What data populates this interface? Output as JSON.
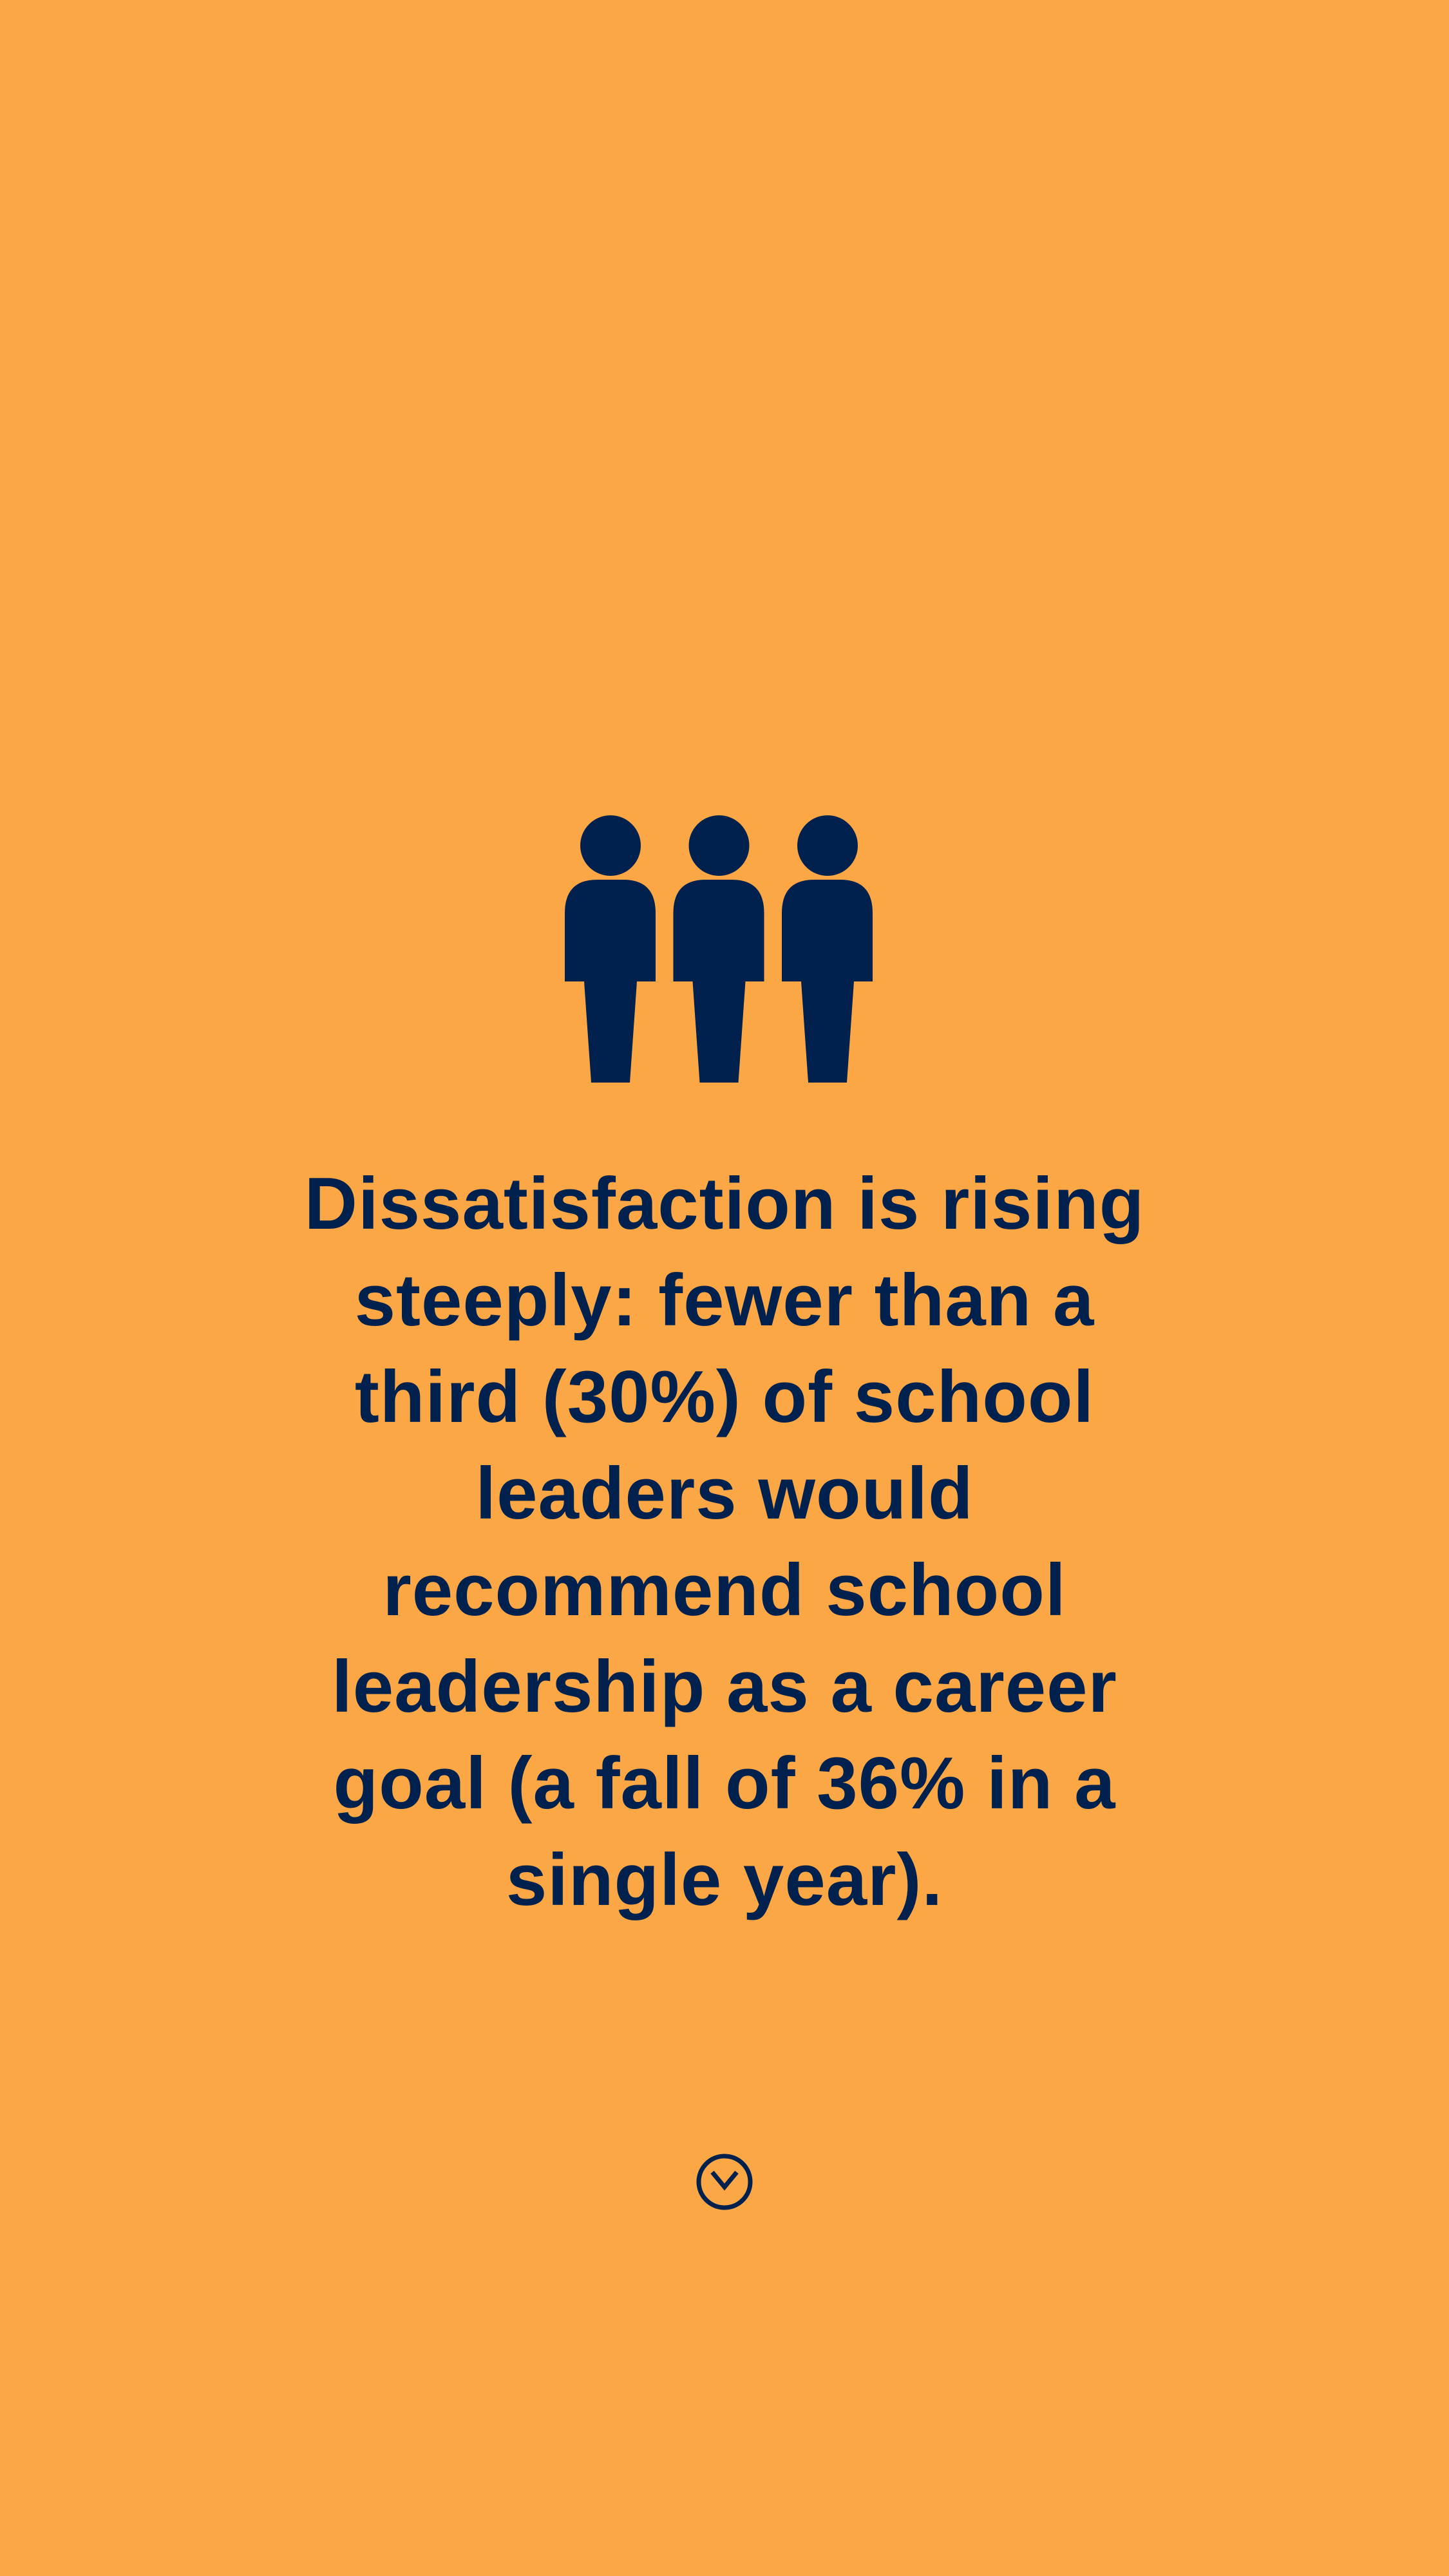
{
  "colors": {
    "background": "#FBA746",
    "foreground": "#00214D"
  },
  "icons": {
    "illustration": "three-people-icon",
    "scroll": "chevron-down-circle-icon"
  },
  "message": {
    "lines": [
      "Dissatisfaction is rising",
      "steeply: fewer than a",
      "third (30%) of school",
      "leaders would",
      "recommend school",
      "leadership as a career",
      "goal (a fall of 36% in a",
      "single year)."
    ]
  }
}
